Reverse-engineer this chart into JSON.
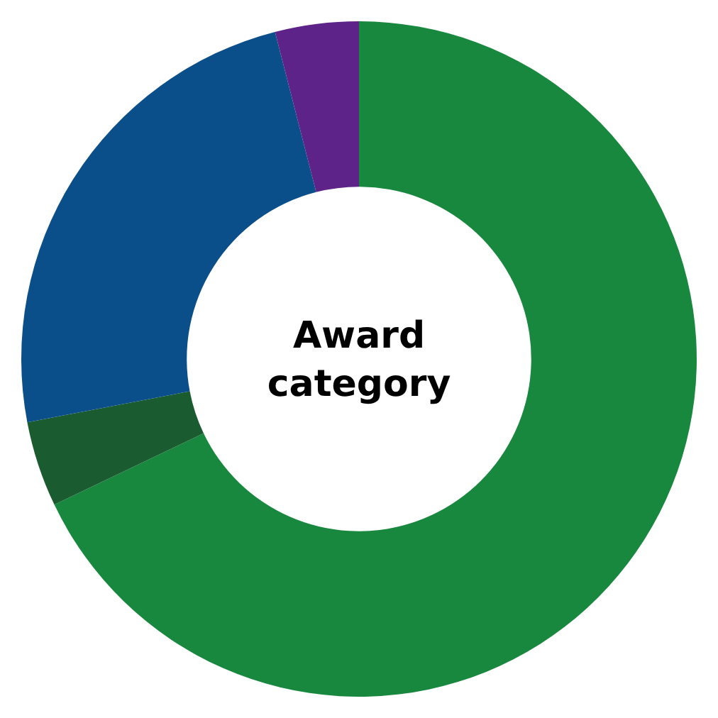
{
  "chart_data": {
    "type": "donut",
    "title": "Award category",
    "categories": [
      null,
      null,
      null,
      null
    ],
    "values": [
      67.9,
      4.1,
      24.0,
      4.0
    ],
    "colors": [
      "#19883f",
      "#1a5c30",
      "#0b4f8a",
      "#5e2388"
    ]
  }
}
